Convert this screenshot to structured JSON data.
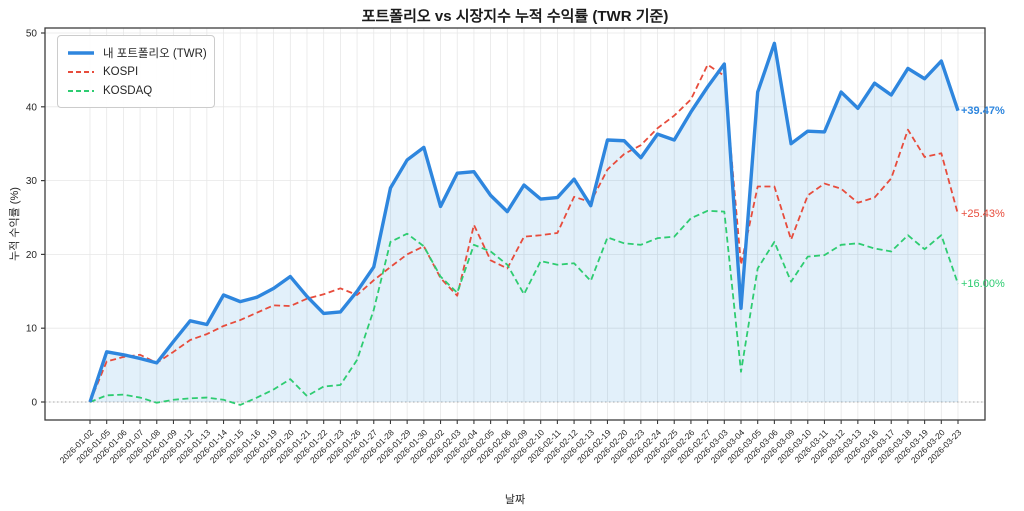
{
  "chart_data": {
    "type": "line",
    "title": "포트폴리오 vs 시장지수 누적 수익률 (TWR 기준)",
    "xlabel": "날짜",
    "ylabel": "누적 수익률 (%)",
    "grid": true,
    "legend_position": "upper left",
    "ylim": [
      -2.4,
      50.7
    ],
    "yticks": [
      0,
      10,
      20,
      30,
      40,
      50
    ],
    "x": [
      "2026-01-02",
      "2026-01-05",
      "2026-01-06",
      "2026-01-07",
      "2026-01-08",
      "2026-01-09",
      "2026-01-12",
      "2026-01-13",
      "2026-01-14",
      "2026-01-15",
      "2026-01-16",
      "2026-01-19",
      "2026-01-20",
      "2026-01-21",
      "2026-01-22",
      "2026-01-23",
      "2026-01-26",
      "2026-01-27",
      "2026-01-28",
      "2026-01-29",
      "2026-01-30",
      "2026-02-02",
      "2026-02-03",
      "2026-02-04",
      "2026-02-05",
      "2026-02-06",
      "2026-02-09",
      "2026-02-10",
      "2026-02-11",
      "2026-02-12",
      "2026-02-13",
      "2026-02-19",
      "2026-02-20",
      "2026-02-23",
      "2026-02-24",
      "2026-02-25",
      "2026-02-26",
      "2026-02-27",
      "2026-03-03",
      "2026-03-04",
      "2026-03-05",
      "2026-03-06",
      "2026-03-09",
      "2026-03-10",
      "2026-03-11",
      "2026-03-12",
      "2026-03-13",
      "2026-03-16",
      "2026-03-17",
      "2026-03-18",
      "2026-03-19",
      "2026-03-20",
      "2026-03-23"
    ],
    "series": [
      {
        "name": "내 포트폴리오 (TWR)",
        "color": "#2e86de",
        "fill_color": "rgba(52,152,219,0.14)",
        "style": "solid",
        "width": 3.4,
        "fill": true,
        "end_label": "+39.47%",
        "values": [
          0.0,
          6.8,
          6.4,
          5.9,
          5.3,
          8.2,
          11.0,
          10.5,
          14.5,
          13.6,
          14.2,
          15.4,
          17.0,
          14.3,
          12.0,
          12.2,
          15.0,
          18.3,
          29.0,
          32.8,
          34.5,
          26.5,
          31.0,
          31.2,
          28.0,
          25.8,
          29.4,
          27.5,
          27.7,
          30.2,
          26.6,
          35.5,
          35.4,
          33.1,
          36.3,
          35.5,
          39.3,
          42.7,
          45.8,
          12.7,
          42.0,
          48.6,
          35.0,
          36.7,
          36.6,
          42.0,
          39.8,
          43.2,
          41.6,
          45.2,
          43.8,
          46.2,
          39.47
        ]
      },
      {
        "name": "KOSPI",
        "color": "#e74c3c",
        "style": "dashed",
        "width": 1.8,
        "fill": false,
        "end_label": "+25.43%",
        "values": [
          0.0,
          5.5,
          6.1,
          6.4,
          5.3,
          6.8,
          8.4,
          9.2,
          10.3,
          11.1,
          12.1,
          13.1,
          13.0,
          14.0,
          14.6,
          15.4,
          14.5,
          16.5,
          18.3,
          20.0,
          21.1,
          16.8,
          14.4,
          24.0,
          19.2,
          18.1,
          22.4,
          22.6,
          22.9,
          27.8,
          27.1,
          31.5,
          33.6,
          34.8,
          37.1,
          38.8,
          41.0,
          45.7,
          44.2,
          18.6,
          29.2,
          29.2,
          22.0,
          28.0,
          29.6,
          28.9,
          27.0,
          27.7,
          30.3,
          36.9,
          33.2,
          33.7,
          25.43
        ]
      },
      {
        "name": "KOSDAQ",
        "color": "#2ecc71",
        "style": "dashed",
        "width": 1.8,
        "fill": false,
        "end_label": "+16.00%",
        "values": [
          0.0,
          0.9,
          1.0,
          0.6,
          -0.1,
          0.3,
          0.5,
          0.6,
          0.3,
          -0.4,
          0.6,
          1.7,
          3.1,
          0.8,
          2.1,
          2.3,
          5.7,
          12.5,
          21.7,
          22.8,
          21.1,
          17.0,
          14.8,
          21.3,
          20.4,
          18.6,
          14.6,
          19.1,
          18.6,
          18.8,
          16.4,
          22.3,
          21.5,
          21.3,
          22.2,
          22.4,
          24.9,
          25.9,
          25.8,
          4.1,
          18.1,
          21.7,
          16.3,
          19.7,
          19.9,
          21.3,
          21.5,
          20.8,
          20.4,
          22.6,
          20.7,
          22.6,
          16.0
        ]
      }
    ],
    "styling": {
      "grid_color": "#e7e7e7",
      "zero_line_color": "#aaaaaa",
      "spine_color": "#3c3c3c",
      "tick_label_color": "#262626"
    }
  }
}
